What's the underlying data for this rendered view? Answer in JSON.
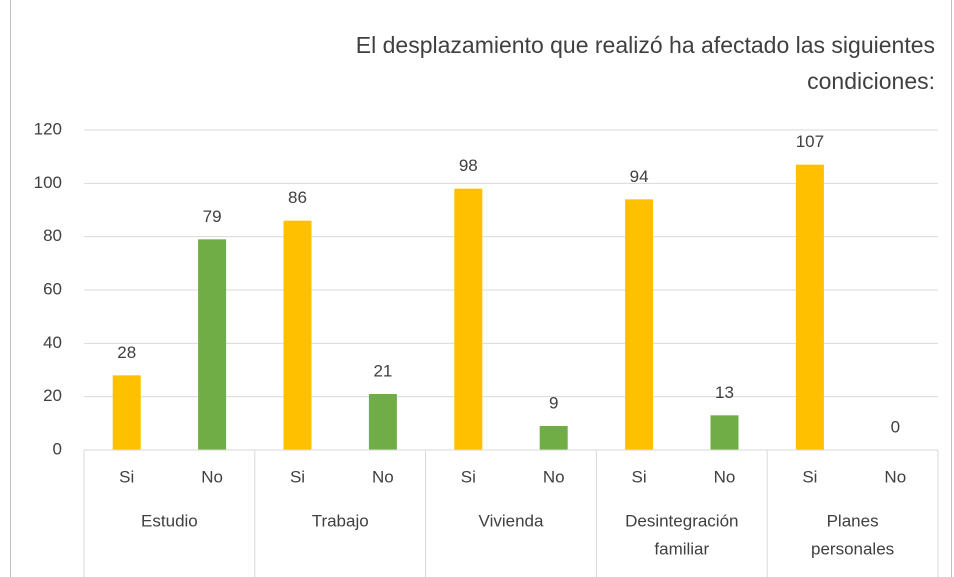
{
  "chart_data": {
    "type": "bar",
    "title": [
      "El desplazamiento que realizó ha afectado las siguientes",
      "condiciones:"
    ],
    "categories": [
      "Si",
      "No",
      "Si",
      "No",
      "Si",
      "No",
      "Si",
      "No",
      "Si",
      "No"
    ],
    "groups": [
      [
        "Estudio"
      ],
      [
        "Trabajo"
      ],
      [
        "Vivienda"
      ],
      [
        "Desintegración",
        "familiar"
      ],
      [
        "Planes",
        "personales"
      ]
    ],
    "values": [
      28,
      79,
      86,
      21,
      98,
      9,
      94,
      13,
      107,
      0
    ],
    "colors": [
      "#FFC000",
      "#70AD47",
      "#FFC000",
      "#70AD47",
      "#FFC000",
      "#70AD47",
      "#FFC000",
      "#70AD47",
      "#FFC000",
      "#70AD47"
    ],
    "ylim": [
      0,
      120
    ],
    "yticks": [
      0,
      20,
      40,
      60,
      80,
      100,
      120
    ],
    "grid": true
  }
}
